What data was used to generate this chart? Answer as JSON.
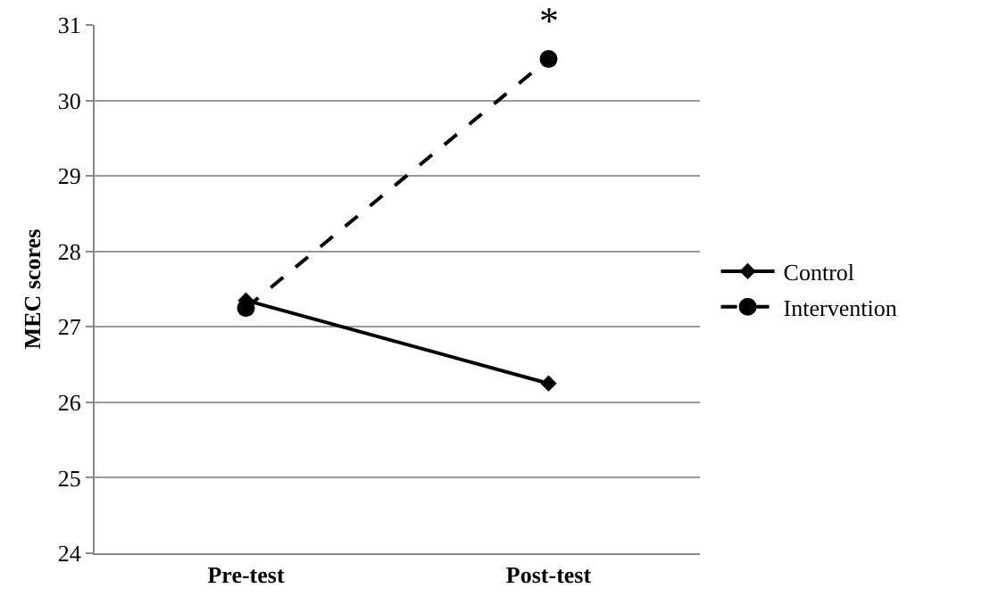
{
  "chart_data": {
    "type": "line",
    "ylabel": "MEC scores",
    "categories": [
      "Pre-test",
      "Post-test"
    ],
    "series": [
      {
        "name": "Control",
        "color": "#000000",
        "values": [
          27.35,
          26.25
        ],
        "marker": "diamond",
        "line_style": "solid"
      },
      {
        "name": "Intervention",
        "color": "#000000",
        "values": [
          27.25,
          30.55
        ],
        "marker": "circle",
        "line_style": "dashed"
      }
    ],
    "ylim": [
      24,
      31
    ],
    "yticks": [
      24,
      25,
      26,
      27,
      28,
      29,
      30,
      31
    ],
    "grid": "y",
    "legend": "right",
    "annotations": [
      {
        "text": "*",
        "x": "Post-test",
        "y": 30.55
      }
    ]
  }
}
